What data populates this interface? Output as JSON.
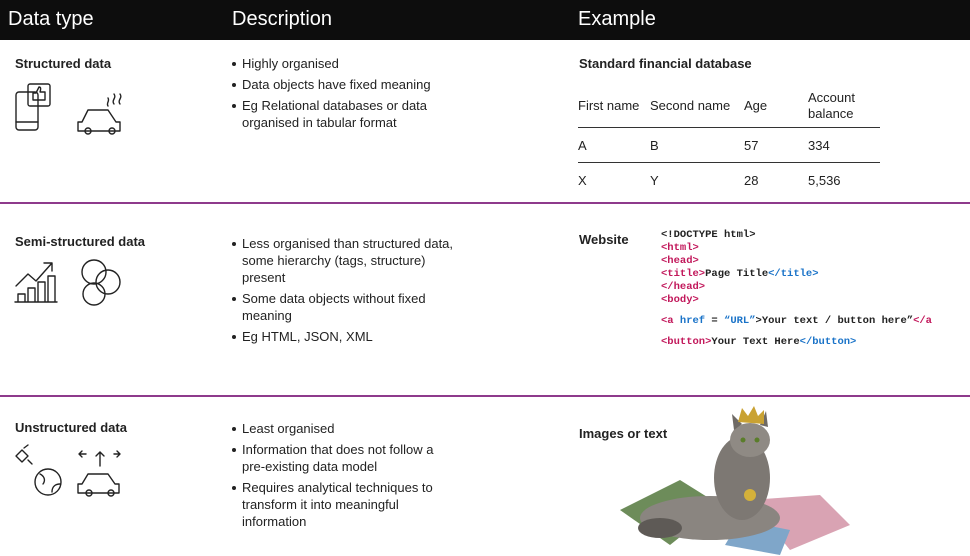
{
  "header": [
    "Data type",
    "Description",
    "Example"
  ],
  "rows": [
    {
      "type": "Structured data",
      "description": [
        "Highly organised",
        "Data objects have fixed meaning",
        "Eg Relational databases or data organised in tabular format"
      ],
      "example": {
        "title": "Standard financial database",
        "table": {
          "columns": [
            "First name",
            "Second name",
            "Age",
            "Account balance"
          ],
          "rows": [
            [
              "A",
              "B",
              "57",
              "334"
            ],
            [
              "X",
              "Y",
              "28",
              "5,536"
            ]
          ]
        }
      }
    },
    {
      "type": "Semi-structured data",
      "description": [
        "Less organised than structured data, some hierarchy (tags, structure) present",
        "Some data objects without fixed meaning",
        "Eg HTML, JSON, XML"
      ],
      "example": {
        "title": "Website",
        "code": [
          [
            {
              "text": "<!DOCTYPE html>",
              "color": "#222222"
            }
          ],
          [
            {
              "text": "<html>",
              "color": "#c2185b"
            }
          ],
          [
            {
              "text": "<head>",
              "color": "#c2185b"
            }
          ],
          [
            {
              "text": "<title>",
              "color": "#c2185b"
            },
            {
              "text": "Page Title",
              "color": "#222222"
            },
            {
              "text": "</title>",
              "color": "#1a73c8"
            }
          ],
          [
            {
              "text": "</head>",
              "color": "#c2185b"
            }
          ],
          [
            {
              "text": "<body>",
              "color": "#c2185b"
            }
          ],
          [
            {
              "text": "<a ",
              "color": "#c2185b"
            },
            {
              "text": "href",
              "color": "#1a73c8"
            },
            {
              "text": " = ",
              "color": "#222222"
            },
            {
              "text": "“URL”",
              "color": "#1a73c8"
            },
            {
              "text": ">Your text / button here”",
              "color": "#222222"
            },
            {
              "text": "</a",
              "color": "#c2185b"
            }
          ],
          [
            {
              "text": "<button>",
              "color": "#c2185b"
            },
            {
              "text": "Your Text Here",
              "color": "#222222"
            },
            {
              "text": "</button>",
              "color": "#1a73c8"
            }
          ]
        ]
      }
    },
    {
      "type": "Unstructured data",
      "description": [
        "Least organised",
        "Information that does not follow a pre-existing data model",
        "Requires analytical techniques to transform it into meaningful information"
      ],
      "example": {
        "title": "Images or text"
      }
    }
  ]
}
